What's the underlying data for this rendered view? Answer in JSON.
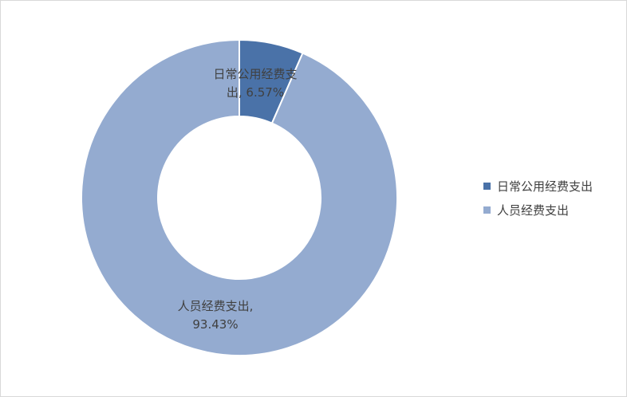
{
  "chart_data": {
    "type": "pie",
    "donut": true,
    "title": "",
    "categories": [
      "日常公用经费支出",
      "人员经费支出"
    ],
    "values": [
      6.57,
      93.43
    ],
    "unit": "%",
    "colors": [
      "#4A72A8",
      "#94ABD0"
    ],
    "legend_position": "right",
    "data_labels": [
      {
        "line1": "日常公用经费支",
        "line2": "出, 6.57%"
      },
      {
        "line1": "人员经费支出,",
        "line2": "93.43%"
      }
    ]
  }
}
